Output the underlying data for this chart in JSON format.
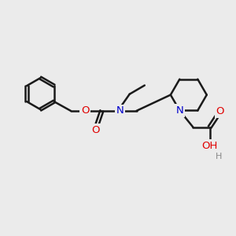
{
  "background_color": "#ebebeb",
  "bond_color": "#1a1a1a",
  "bond_width": 1.8,
  "heteroatom_colors": {
    "O": "#e00000",
    "N": "#0000cc",
    "H": "#888888"
  },
  "figsize": [
    3.0,
    3.0
  ],
  "dpi": 100
}
